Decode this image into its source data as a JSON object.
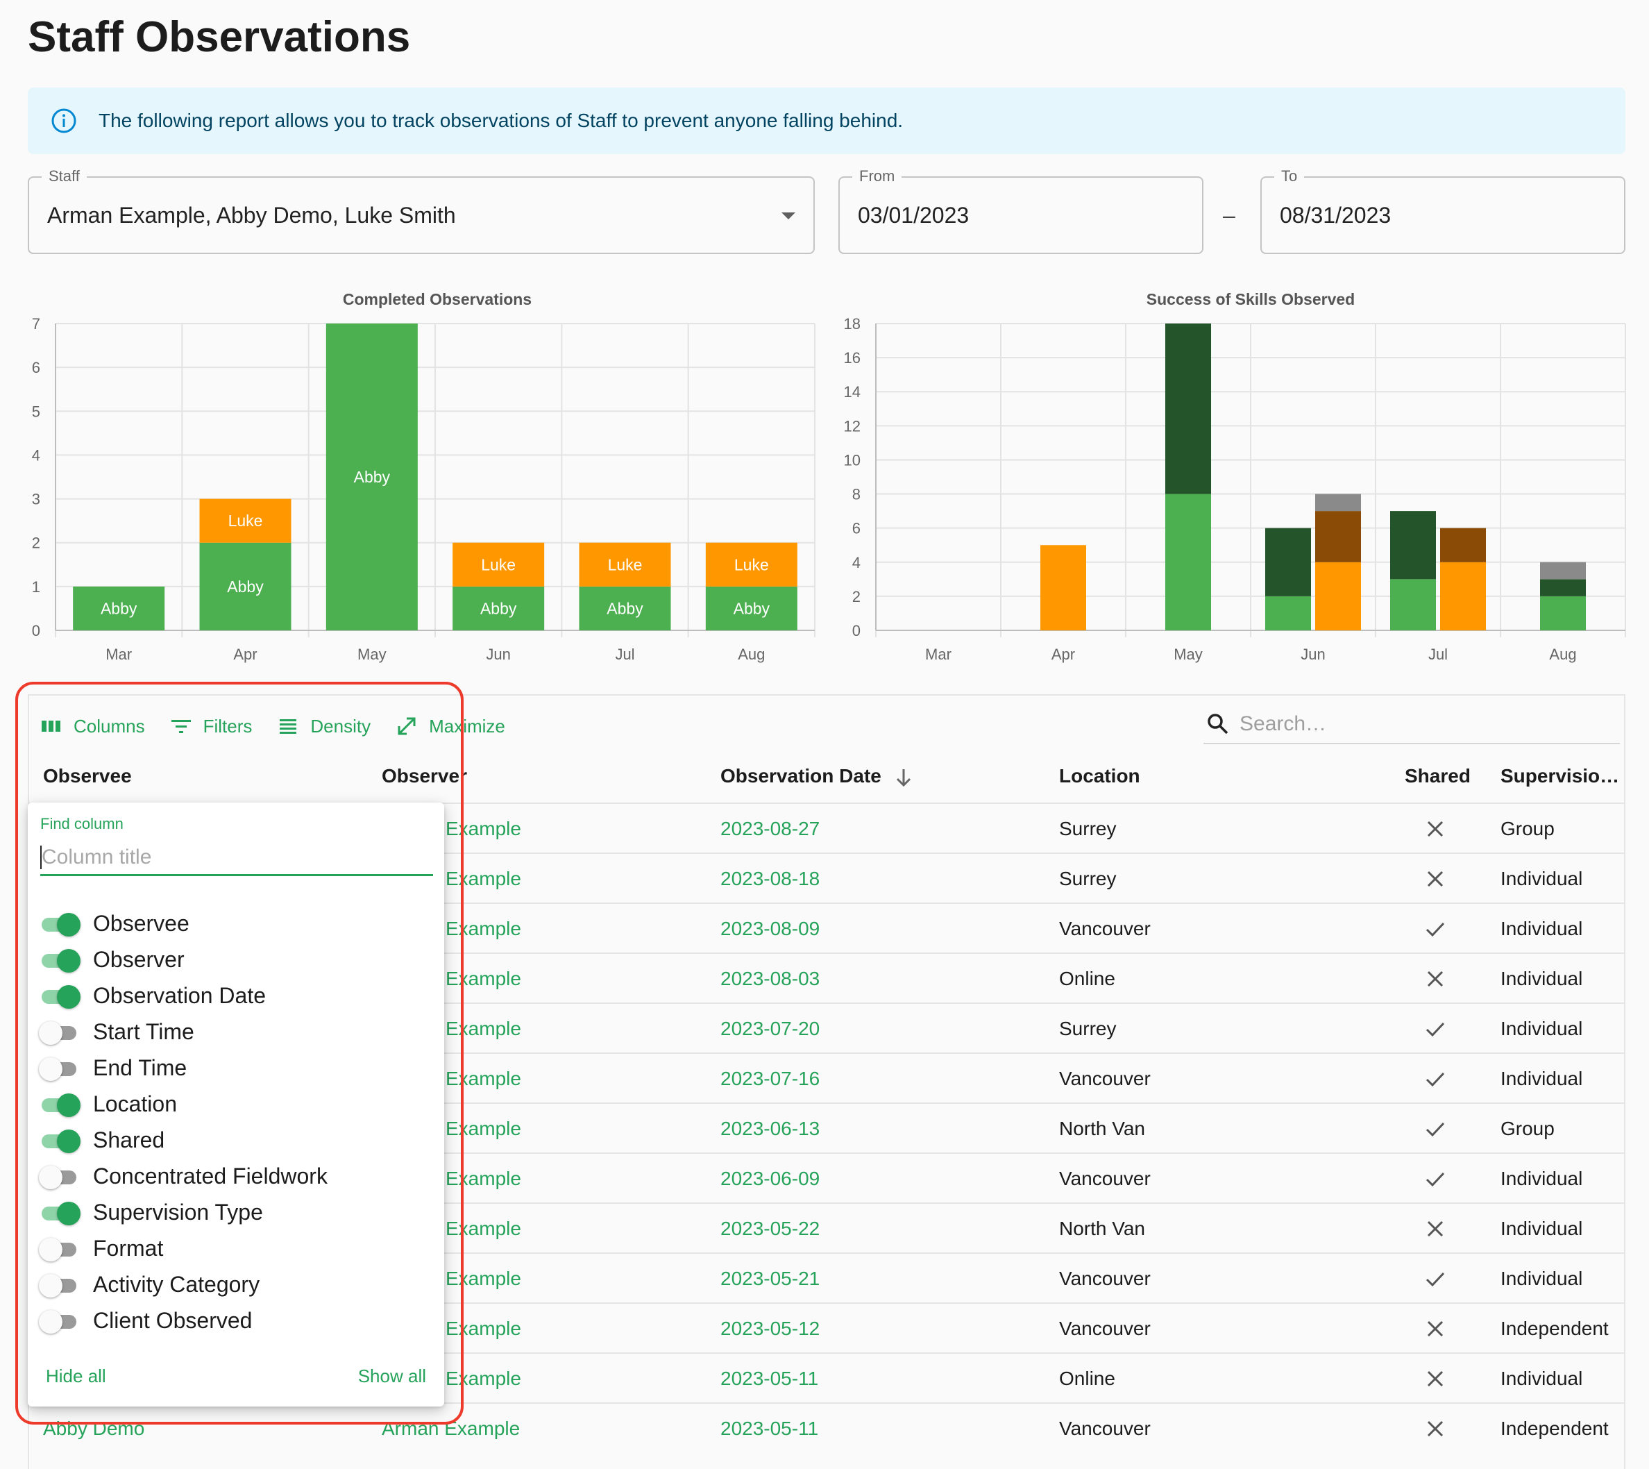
{
  "page_title": "Staff Observations",
  "alert": {
    "text": "The following report allows you to track observations of Staff to prevent anyone falling behind.",
    "icon": "info-icon"
  },
  "filters": {
    "staff": {
      "label": "Staff",
      "value": "Arman Example, Abby Demo, Luke Smith"
    },
    "from": {
      "label": "From",
      "value": "03/01/2023"
    },
    "separator": "–",
    "to": {
      "label": "To",
      "value": "08/31/2023"
    }
  },
  "colors": {
    "accent": "#26a35a",
    "abby": "#4caf50",
    "luke": "#ff9800",
    "dark_green": "#24552a",
    "brown": "#8a4b06",
    "gray": "#8a8a8a",
    "highlight": "#ee3a2a"
  },
  "chart_data": [
    {
      "type": "bar",
      "stacked": true,
      "title": "Completed Observations",
      "categories": [
        "Mar",
        "Apr",
        "May",
        "Jun",
        "Jul",
        "Aug"
      ],
      "ylim": [
        0,
        7
      ],
      "yticks": [
        0,
        1,
        2,
        3,
        4,
        5,
        6,
        7
      ],
      "grid": true,
      "series": [
        {
          "name": "Abby",
          "color": "#4caf50",
          "values": [
            1,
            2,
            7,
            1,
            1,
            1
          ]
        },
        {
          "name": "Luke",
          "color": "#ff9800",
          "values": [
            0,
            1,
            0,
            1,
            1,
            1
          ]
        }
      ]
    },
    {
      "type": "bar",
      "stacked": true,
      "grouped": true,
      "title": "Success of Skills Observed",
      "categories": [
        "Mar",
        "Apr",
        "May",
        "Jun",
        "Jul",
        "Aug"
      ],
      "ylim": [
        0,
        18
      ],
      "yticks": [
        0,
        2,
        4,
        6,
        8,
        10,
        12,
        14,
        16,
        18
      ],
      "grid": true,
      "groups": [
        {
          "category": "Apr",
          "stack": [
            {
              "color": "#ff9800",
              "value": 5
            }
          ]
        },
        {
          "category": "May",
          "stack": [
            {
              "color": "#4caf50",
              "value": 8
            },
            {
              "color": "#24552a",
              "value": 10
            }
          ]
        },
        {
          "category": "Jun",
          "stack": [
            {
              "color": "#4caf50",
              "value": 2
            },
            {
              "color": "#24552a",
              "value": 4
            }
          ]
        },
        {
          "category": "Jun",
          "stack": [
            {
              "color": "#ff9800",
              "value": 4
            },
            {
              "color": "#8a4b06",
              "value": 3
            },
            {
              "color": "#8a8a8a",
              "value": 1
            }
          ]
        },
        {
          "category": "Jul",
          "stack": [
            {
              "color": "#4caf50",
              "value": 3
            },
            {
              "color": "#24552a",
              "value": 4
            }
          ]
        },
        {
          "category": "Jul",
          "stack": [
            {
              "color": "#ff9800",
              "value": 4
            },
            {
              "color": "#8a4b06",
              "value": 2
            }
          ]
        },
        {
          "category": "Aug",
          "stack": [
            {
              "color": "#4caf50",
              "value": 2
            },
            {
              "color": "#24552a",
              "value": 1
            },
            {
              "color": "#8a8a8a",
              "value": 1
            }
          ]
        }
      ]
    }
  ],
  "toolbar": {
    "columns": "Columns",
    "filters": "Filters",
    "density": "Density",
    "maximize": "Maximize",
    "search_placeholder": "Search…"
  },
  "table": {
    "columns": [
      "Observee",
      "Observer",
      "Observation Date",
      "Location",
      "Shared",
      "Supervisio…"
    ],
    "rows": [
      {
        "observer": "Example",
        "date": "2023-08-27",
        "location": "Surrey",
        "shared": false,
        "supervision": "Group"
      },
      {
        "observer": "Example",
        "date": "2023-08-18",
        "location": "Surrey",
        "shared": false,
        "supervision": "Individual"
      },
      {
        "observer": "Example",
        "date": "2023-08-09",
        "location": "Vancouver",
        "shared": true,
        "supervision": "Individual"
      },
      {
        "observer": "Example",
        "date": "2023-08-03",
        "location": "Online",
        "shared": false,
        "supervision": "Individual"
      },
      {
        "observer": "Example",
        "date": "2023-07-20",
        "location": "Surrey",
        "shared": true,
        "supervision": "Individual"
      },
      {
        "observer": "Example",
        "date": "2023-07-16",
        "location": "Vancouver",
        "shared": true,
        "supervision": "Individual"
      },
      {
        "observer": "Example",
        "date": "2023-06-13",
        "location": "North Van",
        "shared": true,
        "supervision": "Group"
      },
      {
        "observer": "Example",
        "date": "2023-06-09",
        "location": "Vancouver",
        "shared": true,
        "supervision": "Individual"
      },
      {
        "observer": "Example",
        "date": "2023-05-22",
        "location": "North Van",
        "shared": false,
        "supervision": "Individual"
      },
      {
        "observer": "Example",
        "date": "2023-05-21",
        "location": "Vancouver",
        "shared": true,
        "supervision": "Individual"
      },
      {
        "observer": "Example",
        "date": "2023-05-12",
        "location": "Vancouver",
        "shared": false,
        "supervision": "Independent"
      },
      {
        "observer": "Example",
        "date": "2023-05-11",
        "location": "Online",
        "shared": false,
        "supervision": "Individual"
      },
      {
        "observee": "Abby Demo",
        "observer": "Arman Example",
        "date": "2023-05-11",
        "location": "Vancouver",
        "shared": false,
        "supervision": "Independent"
      }
    ]
  },
  "columns_panel": {
    "find_label": "Find column",
    "find_placeholder": "Column title",
    "items": [
      {
        "label": "Observee",
        "on": true
      },
      {
        "label": "Observer",
        "on": true
      },
      {
        "label": "Observation Date",
        "on": true
      },
      {
        "label": "Start Time",
        "on": false
      },
      {
        "label": "End Time",
        "on": false
      },
      {
        "label": "Location",
        "on": true
      },
      {
        "label": "Shared",
        "on": true
      },
      {
        "label": "Concentrated Fieldwork",
        "on": false
      },
      {
        "label": "Supervision Type",
        "on": true
      },
      {
        "label": "Format",
        "on": false
      },
      {
        "label": "Activity Category",
        "on": false
      },
      {
        "label": "Client Observed",
        "on": false
      }
    ],
    "hide_all": "Hide all",
    "show_all": "Show all"
  }
}
